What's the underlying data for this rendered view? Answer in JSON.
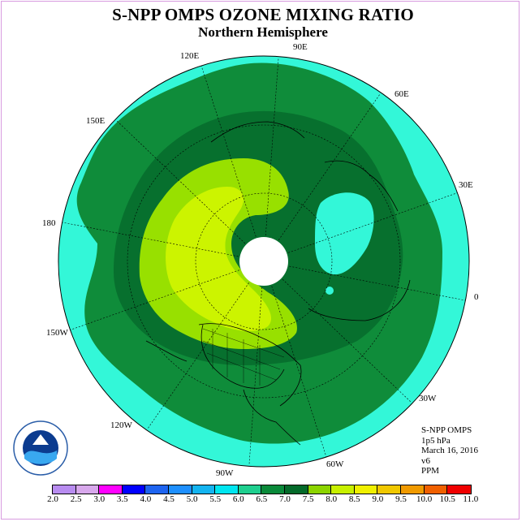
{
  "title": "S-NPP OMPS OZONE MIXING RATIO",
  "subtitle": "Northern Hemisphere",
  "longitude_labels": [
    "90E",
    "60E",
    "30E",
    "0",
    "30W",
    "60W",
    "90W",
    "120W",
    "150W",
    "180",
    "150E",
    "120E"
  ],
  "info": {
    "instrument": "S-NPP OMPS",
    "level": "1p5 hPa",
    "date": "March 16, 2016",
    "version": "v6",
    "units": "PPM"
  },
  "colorbar": {
    "ticks": [
      "2.0",
      "2.5",
      "3.0",
      "3.5",
      "4.0",
      "4.5",
      "5.0",
      "5.5",
      "6.0",
      "6.5",
      "7.0",
      "7.5",
      "8.0",
      "8.5",
      "9.0",
      "9.5",
      "10.0",
      "10.5",
      "11.0"
    ],
    "colors": [
      "#b88cf0",
      "#d8a8ec",
      "#ff00ff",
      "#0000ff",
      "#1e64f0",
      "#1e90ff",
      "#14b4f0",
      "#00e6f0",
      "#1fcf8f",
      "#0a8a3a",
      "#046a2a",
      "#8cd400",
      "#c8f000",
      "#f0f000",
      "#f0c800",
      "#f09a00",
      "#f06000",
      "#f00000",
      "#8a5a40"
    ]
  },
  "map_colors": {
    "band_5_5_6_0": "#33f7d8",
    "band_6_0_6_5": "#0f8c3a",
    "band_6_5_7_0": "#07702e",
    "band_7_0_7_5": "#98e000",
    "band_7_5_8_0": "#ccf400",
    "pole": "#ffffff"
  }
}
